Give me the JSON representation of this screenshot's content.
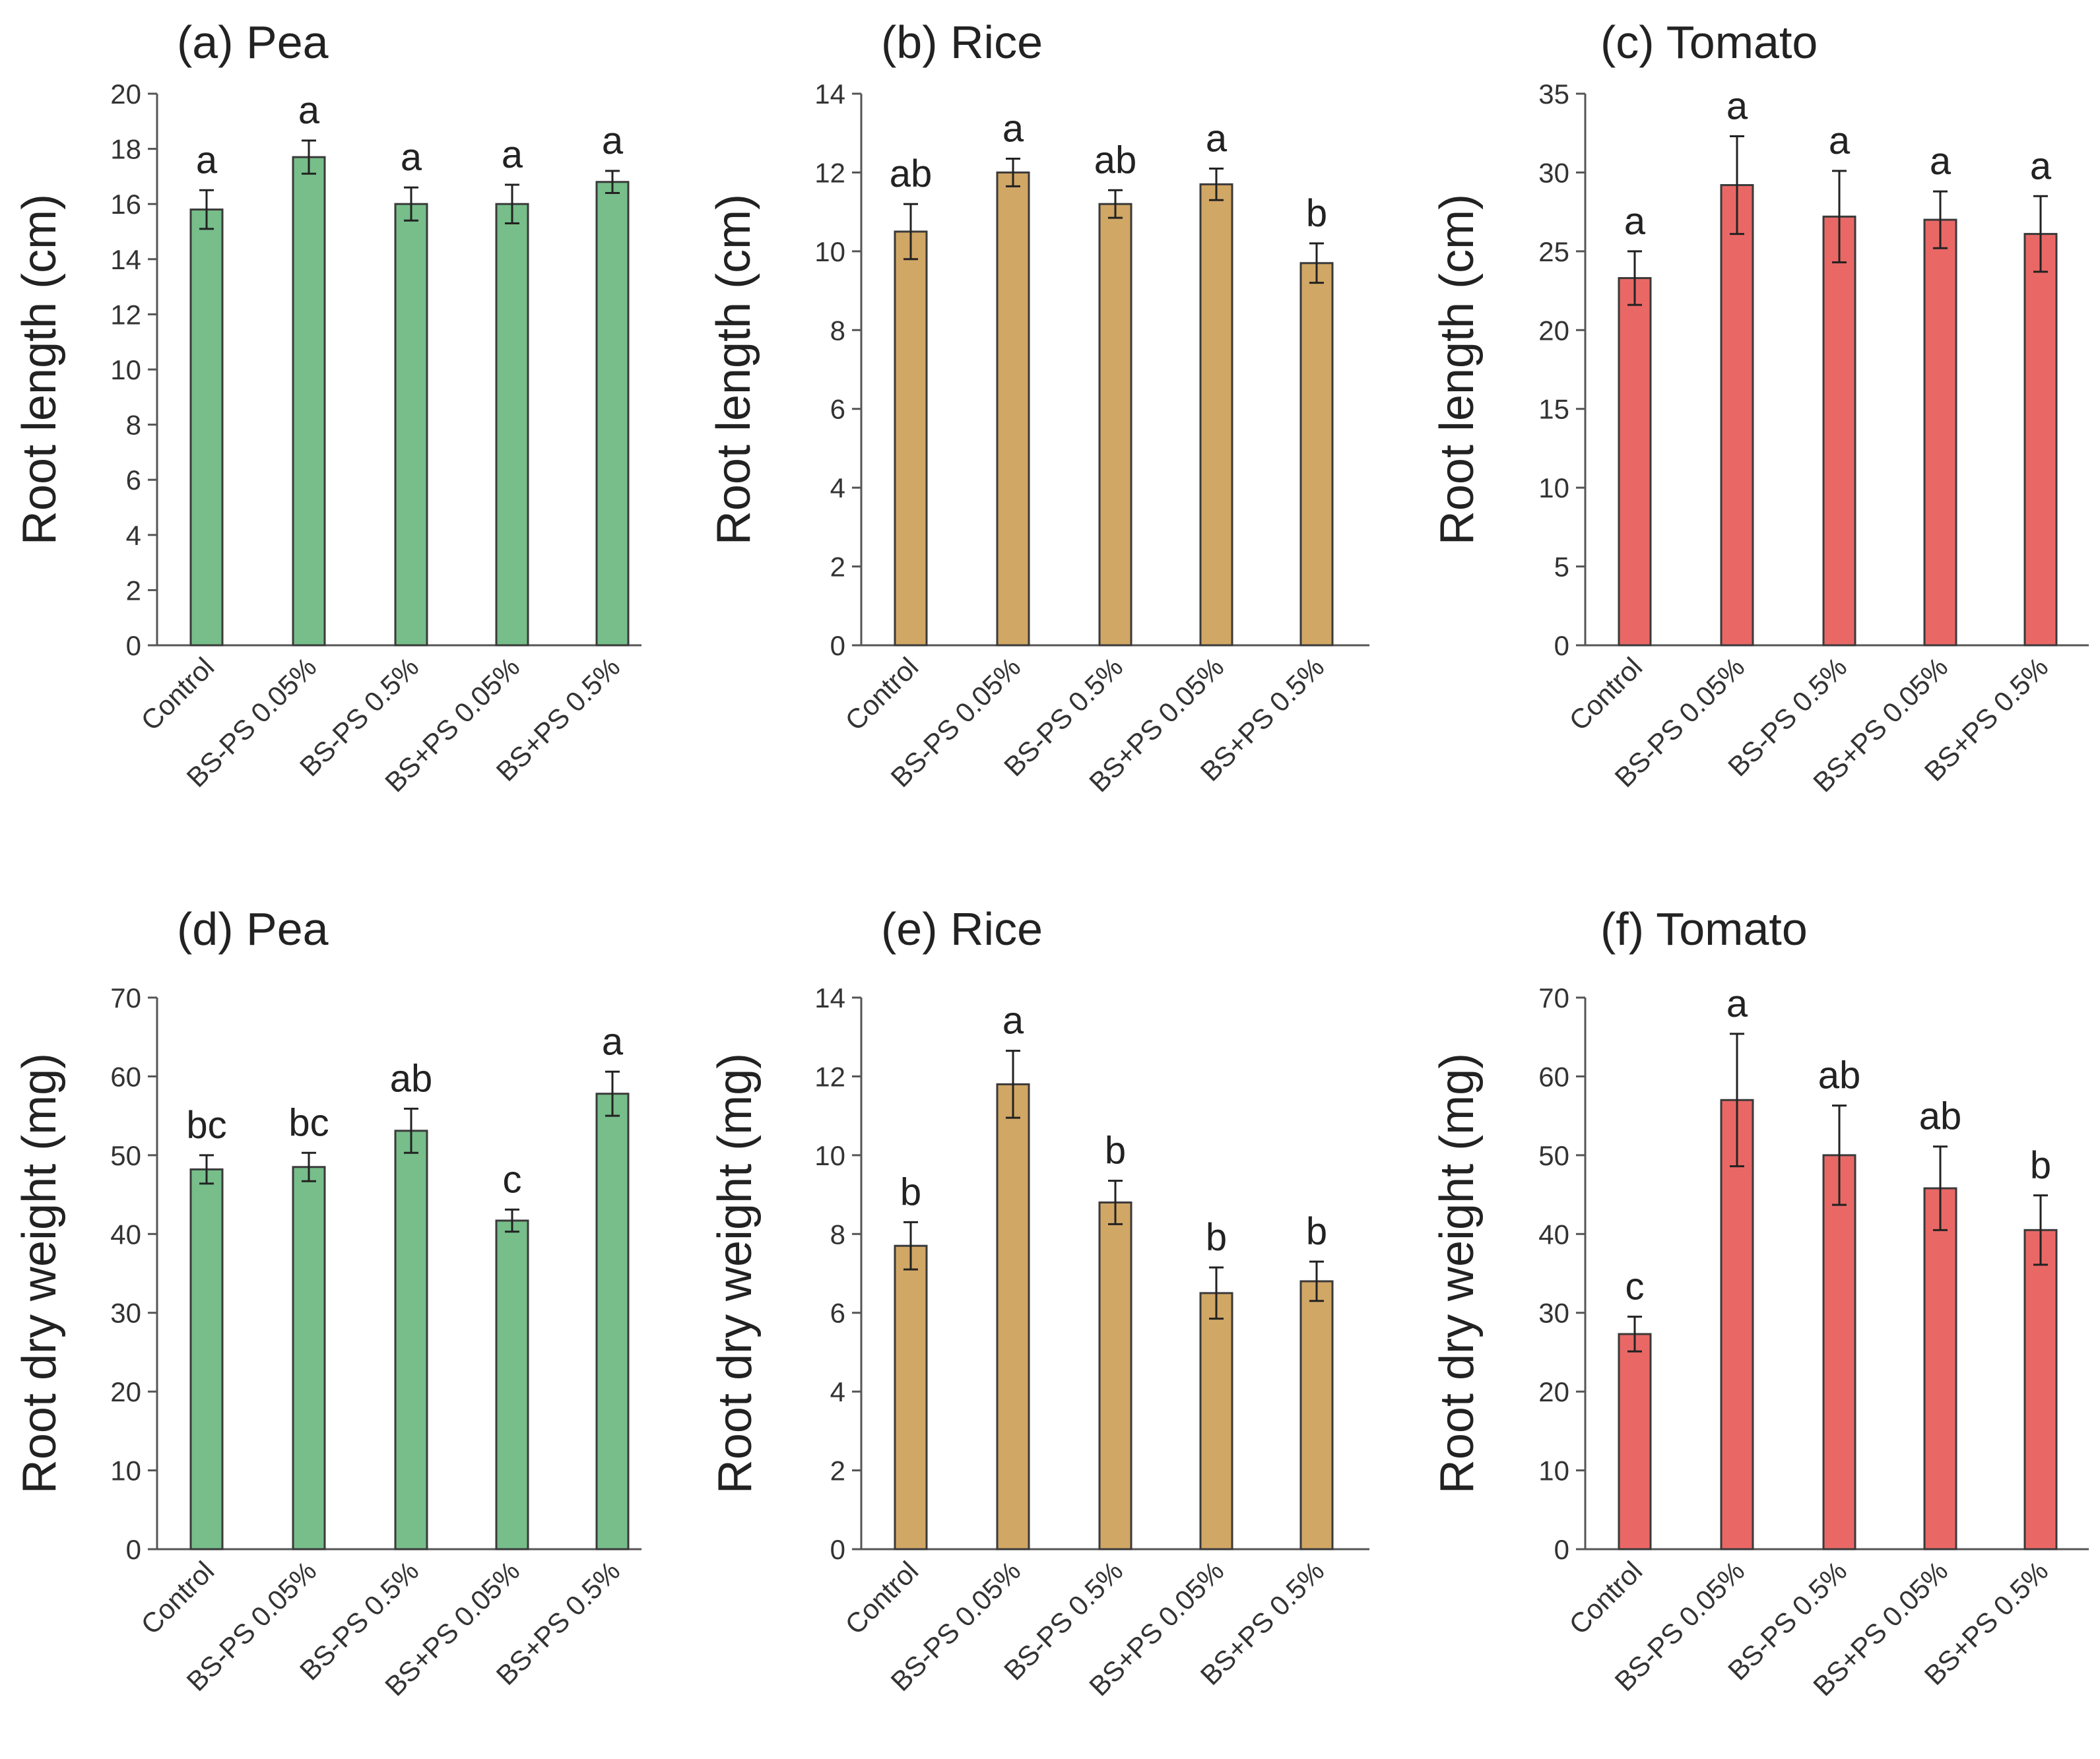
{
  "chart_data": [
    {
      "panel": "a",
      "type": "bar",
      "title": "(a) Pea",
      "ylabel": "Root length (cm)",
      "xlabel": "",
      "ylim": [
        0,
        20
      ],
      "yticks": [
        0,
        2,
        4,
        6,
        8,
        10,
        12,
        14,
        16,
        18,
        20
      ],
      "color": "#77be8a",
      "categories": [
        "Control",
        "BS-PS 0.05%",
        "BS-PS 0.5%",
        "BS+PS 0.05%",
        "BS+PS 0.5%"
      ],
      "values": [
        15.8,
        17.7,
        16.0,
        16.0,
        16.8
      ],
      "errors": [
        0.7,
        0.6,
        0.6,
        0.7,
        0.4
      ],
      "significance": [
        "a",
        "a",
        "a",
        "a",
        "a"
      ]
    },
    {
      "panel": "b",
      "type": "bar",
      "title": "(b) Rice",
      "ylabel": "Root length (cm)",
      "xlabel": "",
      "ylim": [
        0,
        14
      ],
      "yticks": [
        0,
        2,
        4,
        6,
        8,
        10,
        12,
        14
      ],
      "color": "#d1a765",
      "categories": [
        "Control",
        "BS-PS 0.05%",
        "BS-PS 0.5%",
        "BS+PS 0.05%",
        "BS+PS 0.5%"
      ],
      "values": [
        10.5,
        12.0,
        11.2,
        11.7,
        9.7
      ],
      "errors": [
        0.7,
        0.35,
        0.35,
        0.4,
        0.5
      ],
      "significance": [
        "ab",
        "a",
        "ab",
        "a",
        "b"
      ]
    },
    {
      "panel": "c",
      "type": "bar",
      "title": "(c) Tomato",
      "ylabel": "Root length (cm)",
      "xlabel": "",
      "ylim": [
        0,
        35
      ],
      "yticks": [
        0,
        5,
        10,
        15,
        20,
        25,
        30,
        35
      ],
      "color": "#e96866",
      "categories": [
        "Control",
        "BS-PS 0.05%",
        "BS-PS 0.5%",
        "BS+PS 0.05%",
        "BS+PS 0.5%"
      ],
      "values": [
        23.3,
        29.2,
        27.2,
        27.0,
        26.1
      ],
      "errors": [
        1.7,
        3.1,
        2.9,
        1.8,
        2.4
      ],
      "significance": [
        "a",
        "a",
        "a",
        "a",
        "a"
      ]
    },
    {
      "panel": "d",
      "type": "bar",
      "title": "(d) Pea",
      "ylabel": "Root dry weight (mg)",
      "xlabel": "",
      "ylim": [
        0,
        70
      ],
      "yticks": [
        0,
        10,
        20,
        30,
        40,
        50,
        60,
        70
      ],
      "color": "#77be8a",
      "categories": [
        "Control",
        "BS-PS 0.05%",
        "BS-PS 0.5%",
        "BS+PS 0.05%",
        "BS+PS 0.5%"
      ],
      "values": [
        48.2,
        48.5,
        53.1,
        41.7,
        57.8
      ],
      "errors": [
        1.8,
        1.8,
        2.8,
        1.4,
        2.8
      ],
      "significance": [
        "bc",
        "bc",
        "ab",
        "c",
        "a"
      ]
    },
    {
      "panel": "e",
      "type": "bar",
      "title": "(e) Rice",
      "ylabel": "Root dry weight (mg)",
      "xlabel": "",
      "ylim": [
        0,
        14
      ],
      "yticks": [
        0,
        2,
        4,
        6,
        8,
        10,
        12,
        14
      ],
      "color": "#d1a765",
      "categories": [
        "Control",
        "BS-PS 0.05%",
        "BS-PS 0.5%",
        "BS+PS 0.05%",
        "BS+PS 0.5%"
      ],
      "values": [
        7.7,
        11.8,
        8.8,
        6.5,
        6.8
      ],
      "errors": [
        0.6,
        0.85,
        0.55,
        0.65,
        0.5
      ],
      "significance": [
        "b",
        "a",
        "b",
        "b",
        "b"
      ]
    },
    {
      "panel": "f",
      "type": "bar",
      "title": "(f) Tomato",
      "ylabel": "Root dry weight (mg)",
      "xlabel": "",
      "ylim": [
        0,
        70
      ],
      "yticks": [
        0,
        10,
        20,
        30,
        40,
        50,
        60,
        70
      ],
      "color": "#e96866",
      "categories": [
        "Control",
        "BS-PS 0.05%",
        "BS-PS 0.5%",
        "BS+PS 0.05%",
        "BS+PS 0.5%"
      ],
      "values": [
        27.3,
        57.0,
        50.0,
        45.8,
        40.5
      ],
      "errors": [
        2.2,
        8.4,
        6.3,
        5.3,
        4.4
      ],
      "significance": [
        "c",
        "a",
        "ab",
        "ab",
        "b"
      ]
    }
  ]
}
